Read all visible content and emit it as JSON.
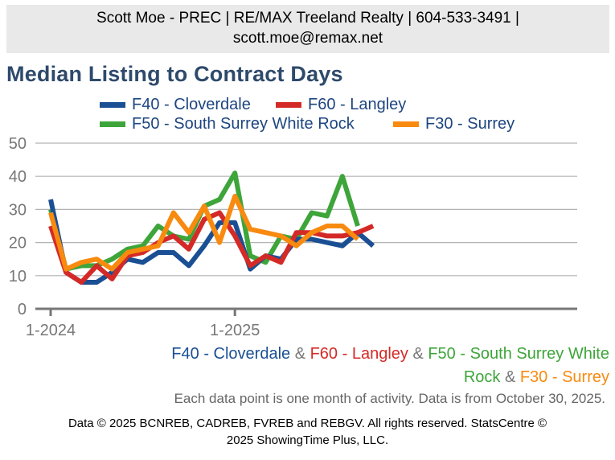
{
  "header": {
    "line1": "Scott Moe - PREC | RE/MAX Treeland Realty | 604-533-3491 |",
    "line2": "scott.moe@remax.net"
  },
  "chart_data": {
    "type": "line",
    "title": "Median Listing to Contract Days",
    "xlabel": "",
    "ylabel": "",
    "ylim": [
      0,
      50
    ],
    "yticks": [
      "0",
      "10",
      "20",
      "30",
      "40",
      "50"
    ],
    "xtick_labels": [
      {
        "label": "1-2024",
        "index": 0
      },
      {
        "label": "1-2025",
        "index": 12
      }
    ],
    "series": [
      {
        "name": "F40 - Cloverdale",
        "color": "#1a4f94",
        "values": [
          33,
          11,
          8,
          8,
          11,
          15,
          14,
          17,
          17,
          13,
          19,
          26,
          26,
          12,
          16,
          15,
          21,
          21,
          20,
          19,
          23,
          19
        ]
      },
      {
        "name": "F60 - Langley",
        "color": "#d42a27",
        "values": [
          25,
          11,
          8,
          13,
          9,
          16,
          17,
          20,
          22,
          18,
          27,
          29,
          22,
          13,
          16,
          14,
          23,
          23,
          22,
          22,
          23,
          25
        ]
      },
      {
        "name": "F50 - South Surrey White Rock",
        "color": "#3da53a",
        "values": [
          30,
          12,
          13,
          13,
          15,
          18,
          19,
          25,
          22,
          21,
          31,
          33,
          41,
          16,
          14,
          22,
          21,
          29,
          28,
          40,
          25
        ]
      },
      {
        "name": "F30 - Surrey",
        "color": "#f88a0f",
        "values": [
          29,
          12,
          14,
          15,
          12,
          17,
          18,
          19,
          29,
          23,
          31,
          20,
          34,
          24,
          23,
          22,
          19,
          23,
          25,
          25,
          21
        ]
      }
    ]
  },
  "subtitle": {
    "parts": [
      {
        "text": "F40 - Cloverdale",
        "color": "#1a4f94"
      },
      {
        "text": " & ",
        "color": "#777777"
      },
      {
        "text": "F60 - Langley",
        "color": "#d42a27"
      },
      {
        "text": " & ",
        "color": "#777777"
      },
      {
        "text": "F50 - South Surrey White",
        "color": "#3da53a"
      }
    ],
    "parts2": [
      {
        "text": "Rock",
        "color": "#3da53a"
      },
      {
        "text": " & ",
        "color": "#777777"
      },
      {
        "text": "F30 - Surrey",
        "color": "#f88a0f"
      }
    ]
  },
  "note": "Each data point is one month of activity. Data is from October 30, 2025.",
  "footer": {
    "line1": "Data © 2025 BCNREB, CADREB, FVREB and REBGV. All rights reserved. StatsCentre ©",
    "line2": "2025 ShowingTime Plus, LLC."
  }
}
